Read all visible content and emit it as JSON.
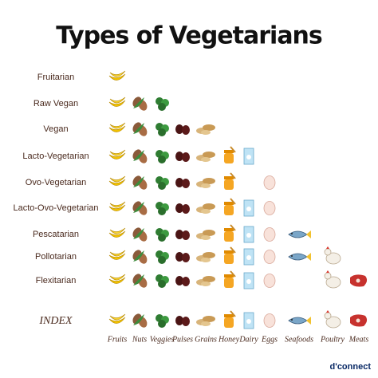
{
  "title": "Types of Vegetarians",
  "rows": [
    {
      "label": "Fruitarian",
      "foods": [
        true,
        false,
        false,
        false,
        false,
        false,
        false,
        false,
        false,
        false,
        false
      ]
    },
    {
      "label": "Raw Vegan",
      "foods": [
        true,
        true,
        true,
        false,
        false,
        false,
        false,
        false,
        false,
        false,
        false
      ]
    },
    {
      "label": "Vegan",
      "foods": [
        true,
        true,
        true,
        true,
        true,
        false,
        false,
        false,
        false,
        false,
        false
      ]
    },
    {
      "label": "Lacto-Vegetarian",
      "foods": [
        true,
        true,
        true,
        true,
        true,
        true,
        true,
        false,
        false,
        false,
        false
      ]
    },
    {
      "label": "Ovo-Vegetarian",
      "foods": [
        true,
        true,
        true,
        true,
        true,
        true,
        false,
        true,
        false,
        false,
        false
      ]
    },
    {
      "label": "Lacto-Ovo-Vegetarian",
      "foods": [
        true,
        true,
        true,
        true,
        true,
        true,
        true,
        true,
        false,
        false,
        false
      ]
    },
    {
      "label": "Pescatarian",
      "foods": [
        true,
        true,
        true,
        true,
        true,
        true,
        true,
        true,
        true,
        false,
        false
      ]
    },
    {
      "label": "Pollotarian",
      "foods": [
        true,
        true,
        true,
        true,
        true,
        true,
        true,
        true,
        true,
        true,
        false
      ]
    },
    {
      "label": "Flexitarian",
      "foods": [
        true,
        true,
        true,
        true,
        true,
        true,
        true,
        true,
        false,
        true,
        true
      ]
    }
  ],
  "index": {
    "label": "INDEX",
    "items": [
      "Fruits",
      "Nuts",
      "Veggies",
      "Pulses",
      "Grains",
      "Honey",
      "Dairy",
      "Eggs",
      "Seafoods",
      "Poultry",
      "Meats"
    ]
  },
  "logo": "d'connect"
}
